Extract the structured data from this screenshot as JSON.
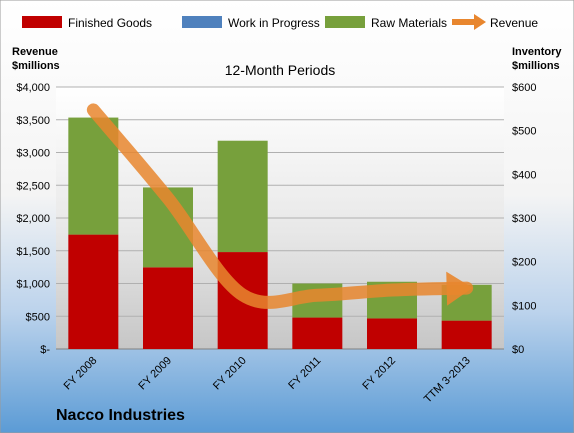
{
  "chart_data": {
    "type": "bar",
    "title": "12-Month Periods",
    "company": "Nacco Industries",
    "categories": [
      "FY 2008",
      "FY 2009",
      "FY 2010",
      "FY 2011",
      "FY 2012",
      "TTM 3-2013"
    ],
    "series": [
      {
        "name": "Finished Goods",
        "axis": "right",
        "stacked": true,
        "color": "#c00000",
        "values": [
          262,
          187,
          222,
          72,
          70,
          65
        ]
      },
      {
        "name": "Work in Progress",
        "axis": "right",
        "stacked": true,
        "color": "#4f81bd",
        "values": [
          0,
          0,
          0,
          0,
          0,
          0
        ]
      },
      {
        "name": "Raw Materials",
        "axis": "right",
        "stacked": true,
        "color": "#77a03c",
        "values": [
          268,
          183,
          255,
          78,
          84,
          82
        ]
      },
      {
        "name": "Revenue",
        "axis": "left",
        "type": "line",
        "color": "#e8862e",
        "values": [
          3650,
          2300,
          825,
          820,
          900,
          930
        ]
      }
    ],
    "left_axis": {
      "title_line1": "Revenue",
      "title_line2": "$millions",
      "ylim": [
        0,
        4000
      ],
      "ticks": [
        0,
        500,
        1000,
        1500,
        2000,
        2500,
        3000,
        3500,
        4000
      ],
      "tick_labels": [
        "$-",
        "$500",
        "$1,000",
        "$1,500",
        "$2,000",
        "$2,500",
        "$3,000",
        "$3,500",
        "$4,000"
      ]
    },
    "right_axis": {
      "title_line1": "Inventory",
      "title_line2": "$millions",
      "ylim": [
        0,
        600
      ],
      "ticks": [
        0,
        100,
        200,
        300,
        400,
        500,
        600
      ],
      "tick_labels": [
        "$0",
        "$100",
        "$200",
        "$300",
        "$400",
        "$500",
        "$600"
      ]
    },
    "grid": true,
    "legend_position": "top"
  }
}
